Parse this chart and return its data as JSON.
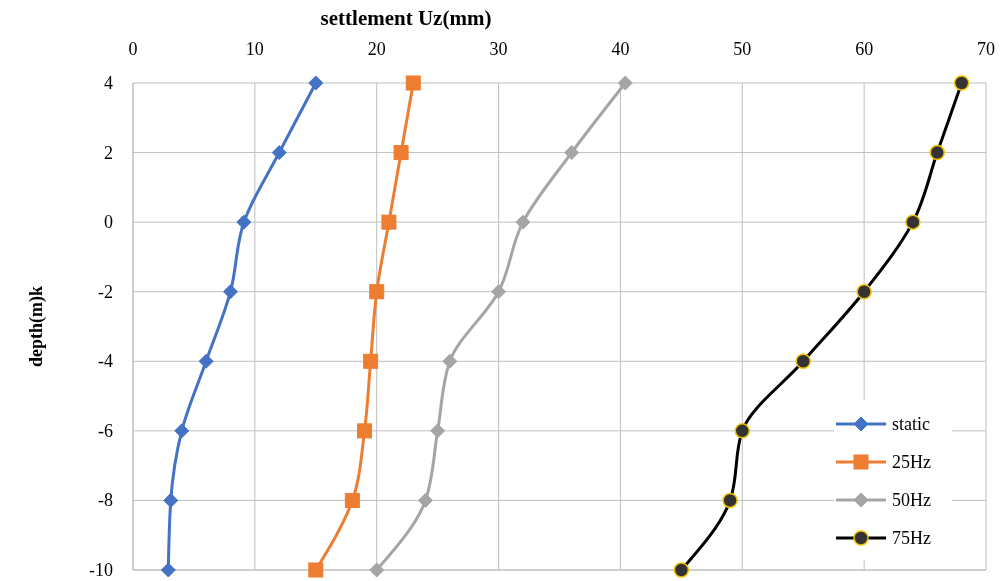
{
  "chart_data": {
    "type": "line",
    "xlabel": "settlement Uz(mm)",
    "ylabel": "depth(m)k",
    "xlim": [
      0,
      70
    ],
    "xticks": [
      0,
      10,
      20,
      30,
      40,
      50,
      60,
      70
    ],
    "ylim": [
      -10,
      4
    ],
    "yticks": [
      -10,
      -8,
      -6,
      -4,
      -2,
      0,
      2,
      4
    ],
    "grid": true,
    "legend": "bottom right",
    "series": [
      {
        "name": "static",
        "color": "#4472c4",
        "marker": "diamond",
        "x": [
          15,
          12,
          9.1,
          8,
          6,
          4,
          3.1,
          2.9
        ],
        "values": [
          4,
          2,
          0,
          -2,
          -4,
          -6,
          -8,
          -10
        ]
      },
      {
        "name": "25Hz",
        "color": "#ed7d31",
        "marker": "square",
        "x": [
          23,
          22,
          21,
          20,
          19.5,
          19,
          18,
          15
        ],
        "values": [
          4,
          2,
          0,
          -2,
          -4,
          -6,
          -8,
          -10
        ]
      },
      {
        "name": "50Hz",
        "color": "#a5a5a5",
        "marker": "diamond",
        "x": [
          40.4,
          36,
          32,
          30,
          26,
          25,
          24,
          20
        ],
        "values": [
          4,
          2,
          0,
          -2,
          -4,
          -6,
          -8,
          -10
        ]
      },
      {
        "name": "75Hz",
        "color": "#000000",
        "marker": "circle",
        "x": [
          68,
          66,
          64,
          60,
          55,
          50,
          49,
          45
        ],
        "values": [
          4,
          2,
          0,
          -2,
          -4,
          -6,
          -8,
          -10
        ]
      }
    ]
  }
}
